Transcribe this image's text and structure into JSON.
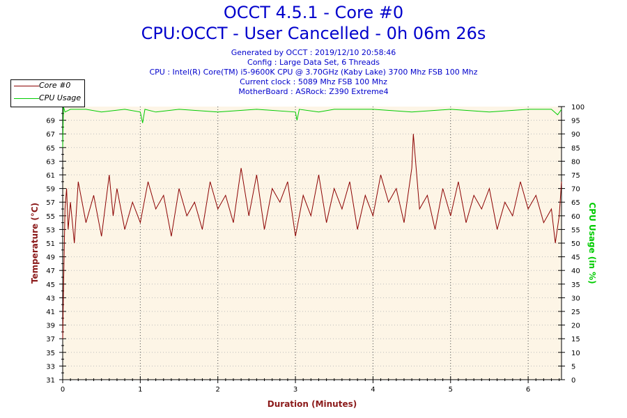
{
  "header": {
    "title": "OCCT 4.5.1 - Core #0",
    "subtitle": "CPU:OCCT - User Cancelled - 0h 06m 26s",
    "info_lines": [
      "Generated by OCCT : 2019/12/10 20:58:46",
      "Config : Large Data Set, 6 Threads",
      "CPU : Intel(R) Core(TM) i5-9600K CPU @ 3.70GHz (Kaby Lake) 3700 Mhz FSB 100 Mhz",
      "Current clock : 5089 Mhz FSB 100 Mhz",
      "MotherBoard : ASRock: Z390 Extreme4"
    ]
  },
  "legend": {
    "items": [
      {
        "label": "Core #0",
        "color": "#8b0000"
      },
      {
        "label": "CPU Usage",
        "color": "#00cc00"
      }
    ]
  },
  "colors": {
    "temperature": "#8b0000",
    "cpu_usage": "#00cc00",
    "title": "#0000cc",
    "plot_bg": "#fdf5e6",
    "temp_axis_label": "#8b1a1a",
    "usage_axis_label": "#00cc00"
  },
  "chart_data": {
    "type": "line",
    "xlabel": "Duration (Minutes)",
    "ylabel": "Temperature (°C)",
    "y2label": "CPU Usage (in %)",
    "xlim": [
      0,
      6.43
    ],
    "ylim": [
      31,
      71
    ],
    "y2lim": [
      0,
      100
    ],
    "x_ticks": [
      "0",
      "1",
      "2",
      "3",
      "4",
      "5",
      "6"
    ],
    "y_ticks": [
      "31",
      "33",
      "35",
      "37",
      "39",
      "41",
      "43",
      "45",
      "47",
      "49",
      "51",
      "53",
      "55",
      "57",
      "59",
      "61",
      "63",
      "65",
      "67",
      "69"
    ],
    "y2_ticks": [
      "0",
      "5",
      "10",
      "15",
      "20",
      "25",
      "30",
      "35",
      "40",
      "45",
      "50",
      "55",
      "60",
      "65",
      "70",
      "75",
      "80",
      "85",
      "90",
      "95",
      "100"
    ],
    "grid": true,
    "series": [
      {
        "name": "Core #0",
        "axis": "left",
        "x": [
          0,
          0.01,
          0.02,
          0.03,
          0.05,
          0.07,
          0.1,
          0.15,
          0.2,
          0.3,
          0.4,
          0.5,
          0.6,
          0.65,
          0.7,
          0.8,
          0.9,
          1.0,
          1.1,
          1.2,
          1.3,
          1.4,
          1.5,
          1.6,
          1.7,
          1.8,
          1.9,
          2.0,
          2.1,
          2.2,
          2.3,
          2.4,
          2.5,
          2.6,
          2.7,
          2.8,
          2.9,
          3.0,
          3.1,
          3.2,
          3.3,
          3.4,
          3.5,
          3.6,
          3.7,
          3.8,
          3.9,
          4.0,
          4.1,
          4.2,
          4.3,
          4.4,
          4.5,
          4.52,
          4.6,
          4.7,
          4.8,
          4.9,
          5.0,
          5.1,
          5.2,
          5.3,
          5.4,
          5.5,
          5.6,
          5.7,
          5.8,
          5.9,
          6.0,
          6.1,
          6.2,
          6.3,
          6.35,
          6.4,
          6.43
        ],
        "values": [
          37,
          44,
          50,
          56,
          59,
          53,
          57,
          51,
          60,
          54,
          58,
          52,
          61,
          55,
          59,
          53,
          57,
          54,
          60,
          56,
          58,
          52,
          59,
          55,
          57,
          53,
          60,
          56,
          58,
          54,
          62,
          55,
          61,
          53,
          59,
          57,
          60,
          52,
          58,
          55,
          61,
          54,
          59,
          56,
          60,
          53,
          58,
          55,
          61,
          57,
          59,
          54,
          62,
          67,
          56,
          58,
          53,
          59,
          55,
          60,
          54,
          58,
          56,
          59,
          53,
          57,
          55,
          60,
          56,
          58,
          54,
          56,
          51,
          55,
          60
        ]
      },
      {
        "name": "CPU Usage",
        "axis": "right",
        "x": [
          0,
          0.01,
          0.03,
          0.1,
          0.3,
          0.5,
          0.8,
          1.0,
          1.03,
          1.06,
          1.2,
          1.5,
          2.0,
          2.5,
          3.0,
          3.02,
          3.05,
          3.3,
          3.5,
          4.0,
          4.5,
          5.0,
          5.5,
          6.0,
          6.3,
          6.38,
          6.43
        ],
        "values": [
          85,
          100,
          98,
          99,
          99,
          98,
          99,
          98,
          94,
          99,
          98,
          99,
          98,
          99,
          98,
          95,
          99,
          98,
          99,
          99,
          98,
          99,
          98,
          99,
          99,
          97,
          99
        ]
      }
    ]
  }
}
